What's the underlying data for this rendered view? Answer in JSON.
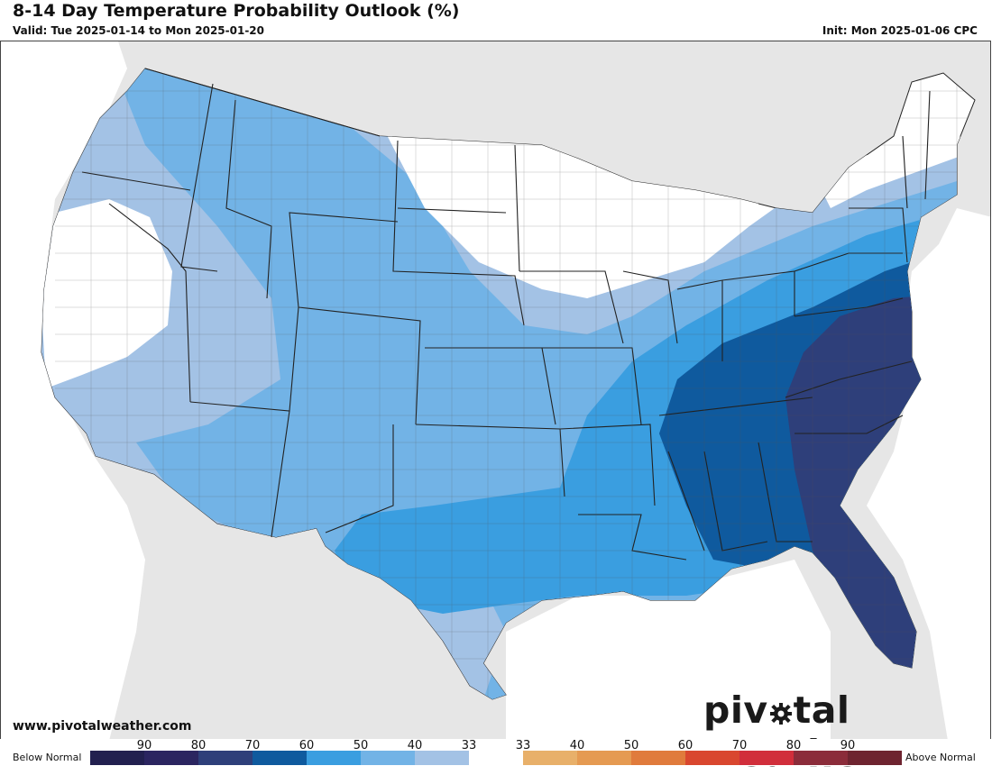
{
  "header": {
    "title": "8-14 Day Temperature Probability Outlook (%)",
    "valid": "Valid: Tue 2025-01-14 to Mon 2025-01-20",
    "init": "Init: Mon 2025-01-06 CPC"
  },
  "footer": {
    "website": "www.pivotalweather.com",
    "logo_text_left": "piv",
    "logo_text_right": "tal weather"
  },
  "legend": {
    "below_label": "Below Normal",
    "above_label": "Above Normal",
    "tick_labels": [
      "90",
      "80",
      "70",
      "60",
      "50",
      "40",
      "33",
      "33",
      "40",
      "50",
      "60",
      "70",
      "80",
      "90"
    ],
    "swatches": [
      "#22204f",
      "#2b2560",
      "#2e3f7a",
      "#0f5a9e",
      "#3a9ee0",
      "#72b3e6",
      "#a3c2e5",
      "#ffffff",
      "#e8b06a",
      "#e59a52",
      "#e07b3c",
      "#d9472f",
      "#d12e3b",
      "#8b2c3a",
      "#6e2430"
    ]
  },
  "map": {
    "colors": {
      "background": "#e6e6e6",
      "land": "#ffffff",
      "ocean": "#ffffff",
      "below_33_40": "#a3c2e5",
      "below_40_50": "#72b3e6",
      "below_50_60": "#3a9ee0",
      "below_60_70": "#0f5a9e",
      "below_70_80": "#2e3f7a"
    }
  }
}
